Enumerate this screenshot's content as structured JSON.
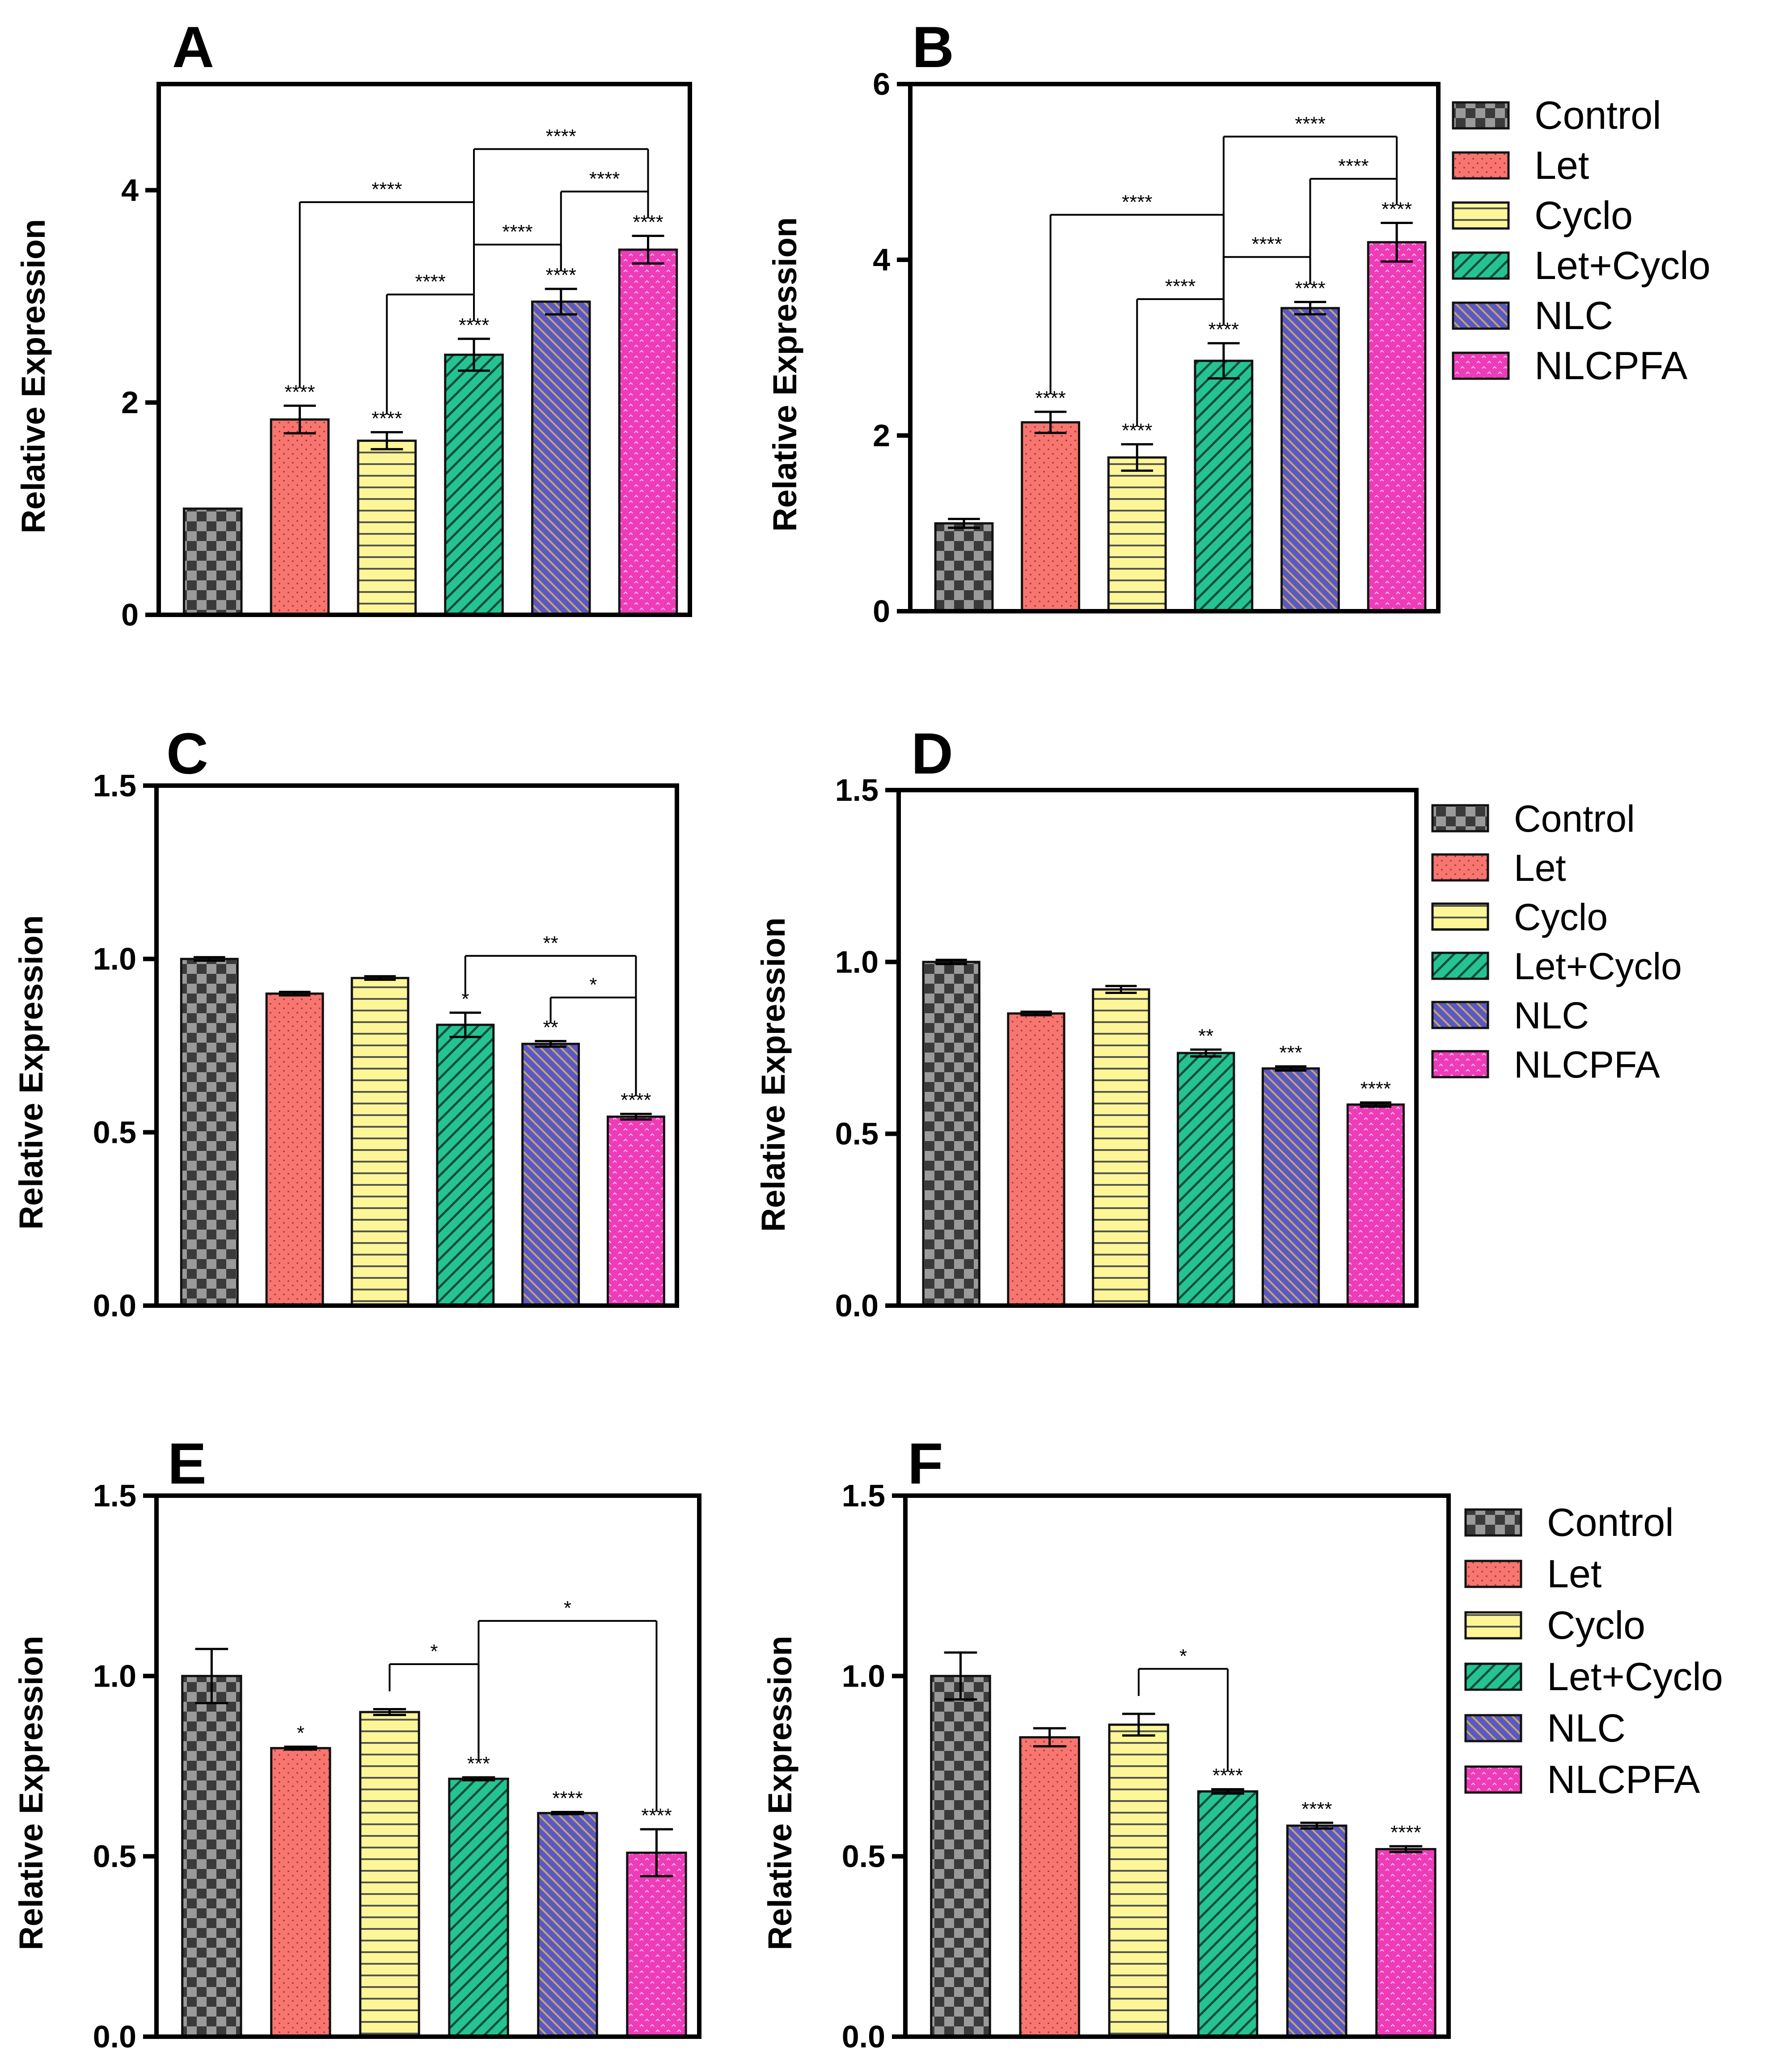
{
  "figure": {
    "groups": [
      "Control",
      "Let",
      "Cyclo",
      "Let+Cyclo",
      "NLC",
      "NLCPFA"
    ],
    "legend": {
      "entries": [
        "Control",
        "Let",
        "Cyclo",
        "Let+Cyclo",
        "NLC",
        "NLCPFA"
      ],
      "placement": "right of panels B, D and F"
    },
    "colors": {
      "Control": "#3a3a3a",
      "Let": "#f9756f",
      "Cyclo": "#fdf697",
      "Let+Cyclo": "#25c392",
      "NLC": "#5b58c6",
      "NLCPFA": "#ee3cb8",
      "axis": "#000000"
    }
  },
  "chart_data": [
    {
      "panel": "A",
      "type": "bar",
      "title": "A",
      "ylabel": "Relative Expression",
      "xlabel": "",
      "ylim": [
        0,
        5
      ],
      "yticks": [
        0,
        2,
        4
      ],
      "ytick_labels": [
        "0",
        "2",
        "4"
      ],
      "grid": false,
      "legend": false,
      "categories": [
        "Control",
        "Let",
        "Cyclo",
        "Let+Cyclo",
        "NLC",
        "NLCPFA"
      ],
      "values": [
        1.0,
        1.84,
        1.64,
        2.45,
        2.95,
        3.44
      ],
      "errors": [
        0.0,
        0.13,
        0.08,
        0.15,
        0.12,
        0.13
      ],
      "significance": [
        "",
        "****",
        "****",
        "****",
        "****",
        "****"
      ],
      "comparisons": [
        {
          "from": 1,
          "to": 3,
          "label": "****"
        },
        {
          "from": 2,
          "to": 3,
          "label": "****"
        },
        {
          "from": 3,
          "to": 4,
          "label": "****"
        },
        {
          "from": 3,
          "to": 5,
          "label": "****"
        },
        {
          "from": 4,
          "to": 5,
          "label": "****"
        }
      ]
    },
    {
      "panel": "B",
      "type": "bar",
      "title": "B",
      "ylabel": "Relative Expression",
      "xlabel": "",
      "ylim": [
        0,
        6
      ],
      "yticks": [
        0,
        2,
        4,
        6
      ],
      "ytick_labels": [
        "0",
        "2",
        "4",
        "6"
      ],
      "grid": false,
      "legend": true,
      "categories": [
        "Control",
        "Let",
        "Cyclo",
        "Let+Cyclo",
        "NLC",
        "NLCPFA"
      ],
      "values": [
        1.0,
        2.15,
        1.75,
        2.85,
        3.45,
        4.2
      ],
      "errors": [
        0.05,
        0.12,
        0.15,
        0.2,
        0.07,
        0.22
      ],
      "significance": [
        "",
        "****",
        "****",
        "****",
        "****",
        "****"
      ],
      "comparisons": [
        {
          "from": 1,
          "to": 3,
          "label": "****"
        },
        {
          "from": 2,
          "to": 3,
          "label": "****"
        },
        {
          "from": 3,
          "to": 4,
          "label": "****"
        },
        {
          "from": 3,
          "to": 5,
          "label": "****"
        },
        {
          "from": 4,
          "to": 5,
          "label": "****"
        }
      ]
    },
    {
      "panel": "C",
      "type": "bar",
      "title": "C",
      "ylabel": "Relative Expression",
      "xlabel": "",
      "ylim": [
        0,
        1.5
      ],
      "yticks": [
        0,
        0.5,
        1.0,
        1.5
      ],
      "ytick_labels": [
        "0.0",
        "0.5",
        "1.0",
        "1.5"
      ],
      "grid": false,
      "legend": false,
      "categories": [
        "Control",
        "Let",
        "Cyclo",
        "Let+Cyclo",
        "NLC",
        "NLCPFA"
      ],
      "values": [
        1.0,
        0.9,
        0.945,
        0.81,
        0.755,
        0.545
      ],
      "errors": [
        0.005,
        0.005,
        0.005,
        0.035,
        0.008,
        0.008
      ],
      "significance": [
        "",
        "",
        "",
        "*",
        "**",
        "****"
      ],
      "comparisons": [
        {
          "from": 3,
          "to": 5,
          "label": "**"
        },
        {
          "from": 4,
          "to": 5,
          "label": "*"
        }
      ]
    },
    {
      "panel": "D",
      "type": "bar",
      "title": "D",
      "ylabel": "Relative Expression",
      "xlabel": "",
      "ylim": [
        0,
        1.5
      ],
      "yticks": [
        0,
        0.5,
        1.0,
        1.5
      ],
      "ytick_labels": [
        "0.0",
        "0.5",
        "1.0",
        "1.5"
      ],
      "grid": false,
      "legend": true,
      "categories": [
        "Control",
        "Let",
        "Cyclo",
        "Let+Cyclo",
        "NLC",
        "NLCPFA"
      ],
      "values": [
        1.0,
        0.85,
        0.92,
        0.735,
        0.69,
        0.585
      ],
      "errors": [
        0.006,
        0.005,
        0.01,
        0.01,
        0.006,
        0.006
      ],
      "significance": [
        "",
        "",
        "",
        "**",
        "***",
        "****"
      ],
      "comparisons": []
    },
    {
      "panel": "E",
      "type": "bar",
      "title": "E",
      "ylabel": "Relative Expression",
      "xlabel": "",
      "ylim": [
        0,
        1.5
      ],
      "yticks": [
        0,
        0.5,
        1.0,
        1.5
      ],
      "ytick_labels": [
        "0.0",
        "0.5",
        "1.0",
        "1.5"
      ],
      "grid": false,
      "legend": false,
      "categories": [
        "Control",
        "Let",
        "Cyclo",
        "Let+Cyclo",
        "NLC",
        "NLCPFA"
      ],
      "values": [
        1.0,
        0.8,
        0.9,
        0.715,
        0.62,
        0.51
      ],
      "errors": [
        0.075,
        0.004,
        0.008,
        0.004,
        0.003,
        0.065
      ],
      "significance": [
        "",
        "*",
        "",
        "***",
        "****",
        "****"
      ],
      "comparisons": [
        {
          "from": 2,
          "to": 3,
          "label": "*"
        },
        {
          "from": 3,
          "to": 5,
          "label": "*"
        }
      ]
    },
    {
      "panel": "F",
      "type": "bar",
      "title": "F",
      "ylabel": "Relative Expression",
      "xlabel": "",
      "ylim": [
        0,
        1.5
      ],
      "yticks": [
        0,
        0.5,
        1.0,
        1.5
      ],
      "ytick_labels": [
        "0.0",
        "0.5",
        "1.0",
        "1.5"
      ],
      "grid": false,
      "legend": true,
      "categories": [
        "Control",
        "Let",
        "Cyclo",
        "Let+Cyclo",
        "NLC",
        "NLCPFA"
      ],
      "values": [
        1.0,
        0.83,
        0.865,
        0.68,
        0.585,
        0.52
      ],
      "errors": [
        0.065,
        0.025,
        0.03,
        0.006,
        0.008,
        0.008
      ],
      "significance": [
        "",
        "",
        "",
        "****",
        "****",
        "****"
      ],
      "comparisons": [
        {
          "from": 2,
          "to": 3,
          "label": "*"
        }
      ]
    }
  ]
}
